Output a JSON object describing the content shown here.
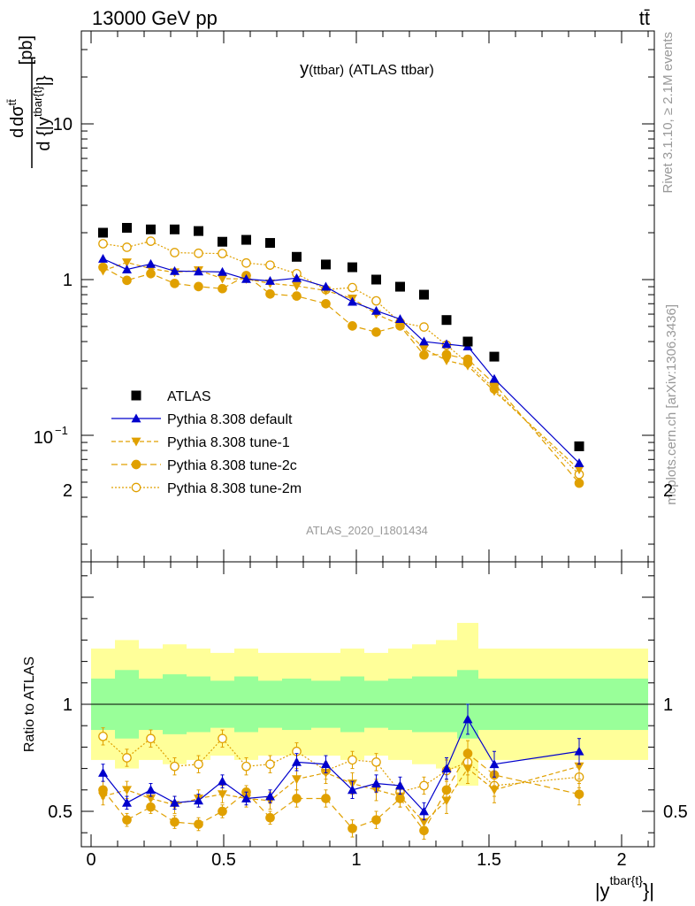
{
  "header": {
    "left": "13000 GeV pp",
    "right": "tt̄",
    "title_main": "y",
    "title_sub": "(ttbar)",
    "title_rest": "(ATLAS ttbar)",
    "analysis_id": "ATLAS_2020_I1801434",
    "side_rivet": "Rivet 3.1.10, ≥ 2.1M events",
    "side_mcplots": "mcplots.cern.ch [arXiv:1306.3436]"
  },
  "axes": {
    "main_ylabel": "d σ^{tt̄} / d {|y^{tbar{t}}|} [pb]",
    "main_ylabel_num": "dσ",
    "main_ylabel_num_sup": "tt̄",
    "main_ylabel_den": "d {|y",
    "main_ylabel_den_sup": "tbar{t}",
    "main_ylabel_den_end": "|}",
    "main_ylabel_unit": "[pb]",
    "ratio_ylabel": "Ratio to ATLAS",
    "xlabel": "|y",
    "xlabel_sup": "tbar{t}",
    "xlabel_end": "}|",
    "main_yticks": [
      "10",
      "1",
      "10",
      "−1"
    ],
    "ratio_yticks": [
      "2",
      "1",
      "0.5"
    ],
    "xticks": [
      "0",
      "0.5",
      "1",
      "1.5",
      "2"
    ]
  },
  "colors": {
    "atlas": "#000000",
    "default": "#0000cc",
    "tune": "#e0a000",
    "band_inner": "#99ff99",
    "band_outer": "#ffff99"
  },
  "legend": {
    "atlas": "ATLAS",
    "default": "Pythia 8.308 default",
    "tune1": "Pythia 8.308 tune-1",
    "tune2c": "Pythia 8.308 tune-2c",
    "tune2m": "Pythia 8.308 tune-2m"
  },
  "chart_data": {
    "type": "scatter",
    "xlabel": "|y^{tbar{t}}|",
    "ylabel": "d σ^{tt̄} / d {|y^{tbar{t}}|} [pb]",
    "ylog": true,
    "xlim": [
      -0.05,
      2.15
    ],
    "ylim": [
      0.02,
      50
    ],
    "ratio_ylim": [
      0.35,
      2.35
    ],
    "bins": [
      [
        0.0,
        0.09
      ],
      [
        0.09,
        0.18
      ],
      [
        0.18,
        0.27
      ],
      [
        0.27,
        0.36
      ],
      [
        0.36,
        0.45
      ],
      [
        0.45,
        0.54
      ],
      [
        0.54,
        0.63
      ],
      [
        0.63,
        0.72
      ],
      [
        0.72,
        0.83
      ],
      [
        0.83,
        0.94
      ],
      [
        0.94,
        1.03
      ],
      [
        1.03,
        1.12
      ],
      [
        1.12,
        1.21
      ],
      [
        1.21,
        1.3
      ],
      [
        1.3,
        1.38
      ],
      [
        1.38,
        1.46
      ],
      [
        1.46,
        1.58
      ],
      [
        1.58,
        2.1
      ]
    ],
    "x": [
      0.045,
      0.135,
      0.225,
      0.315,
      0.405,
      0.495,
      0.585,
      0.675,
      0.775,
      0.885,
      0.985,
      1.075,
      1.165,
      1.255,
      1.34,
      1.42,
      1.52,
      1.84
    ],
    "atlas": [
      2.0,
      2.15,
      2.1,
      2.1,
      2.05,
      1.75,
      1.8,
      1.72,
      1.4,
      1.25,
      1.2,
      1.0,
      0.9,
      0.8,
      0.55,
      0.4,
      0.32,
      0.085
    ],
    "atlas_band_inner": [
      0.12,
      0.16,
      0.12,
      0.14,
      0.13,
      0.11,
      0.13,
      0.11,
      0.12,
      0.11,
      0.13,
      0.11,
      0.12,
      0.13,
      0.13,
      0.16,
      0.12,
      0.12
    ],
    "atlas_band_outer": [
      0.26,
      0.3,
      0.26,
      0.28,
      0.26,
      0.24,
      0.26,
      0.24,
      0.24,
      0.24,
      0.26,
      0.24,
      0.26,
      0.28,
      0.3,
      0.38,
      0.26,
      0.26
    ],
    "series": [
      {
        "name": "Pythia 8.308 default",
        "key": "default",
        "ratio": [
          0.68,
          0.54,
          0.6,
          0.54,
          0.55,
          0.64,
          0.56,
          0.57,
          0.73,
          0.72,
          0.6,
          0.63,
          0.62,
          0.5,
          0.7,
          0.93,
          0.72,
          0.78
        ],
        "err": [
          0.04,
          0.03,
          0.03,
          0.03,
          0.03,
          0.03,
          0.03,
          0.03,
          0.04,
          0.04,
          0.04,
          0.04,
          0.04,
          0.04,
          0.05,
          0.07,
          0.06,
          0.06
        ]
      },
      {
        "name": "Pythia 8.308 tune-1",
        "key": "tune1",
        "ratio": [
          0.57,
          0.6,
          0.56,
          0.53,
          0.56,
          0.58,
          0.56,
          0.55,
          0.65,
          0.68,
          0.63,
          0.6,
          0.57,
          0.45,
          0.55,
          0.7,
          0.6,
          0.71
        ],
        "err": [
          0.04,
          0.04,
          0.04,
          0.04,
          0.04,
          0.04,
          0.04,
          0.04,
          0.05,
          0.05,
          0.05,
          0.05,
          0.05,
          0.05,
          0.06,
          0.07,
          0.06,
          0.06
        ]
      },
      {
        "name": "Pythia 8.308 tune-2c",
        "key": "tune2c",
        "ratio": [
          0.6,
          0.46,
          0.52,
          0.45,
          0.44,
          0.5,
          0.59,
          0.47,
          0.56,
          0.56,
          0.42,
          0.46,
          0.56,
          0.41,
          0.6,
          0.77,
          0.67,
          0.58
        ],
        "err": [
          0.04,
          0.03,
          0.03,
          0.03,
          0.03,
          0.03,
          0.03,
          0.03,
          0.04,
          0.04,
          0.04,
          0.04,
          0.04,
          0.04,
          0.05,
          0.06,
          0.05,
          0.05
        ]
      },
      {
        "name": "Pythia 8.308 tune-2m",
        "key": "tune2m",
        "ratio": [
          0.85,
          0.75,
          0.84,
          0.71,
          0.72,
          0.84,
          0.71,
          0.72,
          0.78,
          0.69,
          0.74,
          0.73,
          0.59,
          0.62,
          0.69,
          0.73,
          0.62,
          0.66
        ],
        "err": [
          0.04,
          0.04,
          0.04,
          0.04,
          0.04,
          0.04,
          0.04,
          0.04,
          0.04,
          0.04,
          0.04,
          0.04,
          0.04,
          0.04,
          0.05,
          0.06,
          0.05,
          0.05
        ]
      }
    ]
  }
}
